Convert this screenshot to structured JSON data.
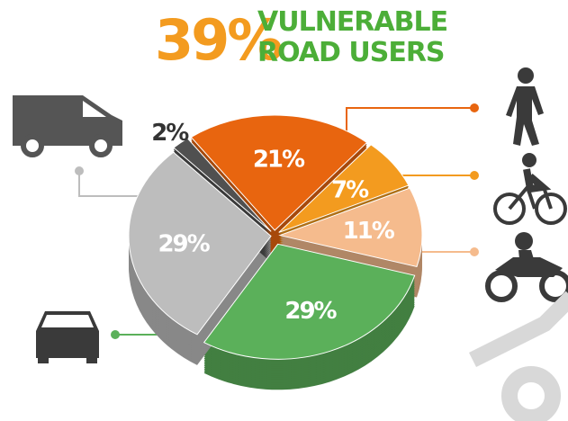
{
  "chart_data": {
    "type": "pie",
    "title": "39%",
    "subtitle": [
      "VULNERABLE",
      "ROAD USERS"
    ],
    "categories": [
      null,
      null,
      null,
      null,
      null,
      null
    ],
    "values": [
      21,
      7,
      11,
      29,
      29,
      2
    ],
    "value_labels": [
      "21%",
      "7%",
      "11%",
      "29%",
      "29%",
      "2%"
    ],
    "colors": [
      "#e8650f",
      "#f39b1f",
      "#f5bb8d",
      "#5bb05a",
      "#bdbdbd",
      "#505050"
    ]
  }
}
